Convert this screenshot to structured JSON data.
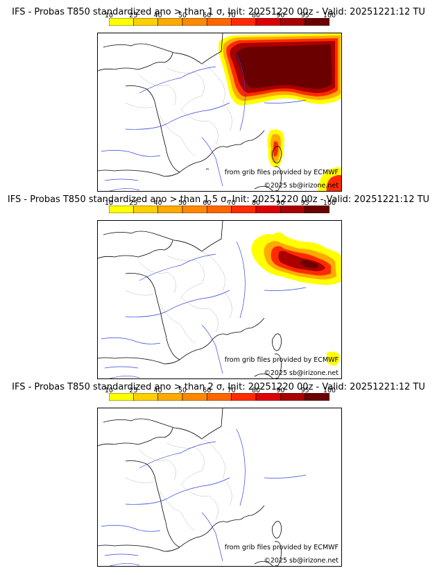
{
  "colorbar": {
    "ticks": [
      "10",
      "25",
      "40",
      "50",
      "60",
      "70",
      "80",
      "90",
      "95",
      "100"
    ],
    "colors": [
      "#ffff00",
      "#ffd000",
      "#ffaa00",
      "#ff8800",
      "#ff6600",
      "#ff2a00",
      "#dd0000",
      "#aa0000",
      "#6a0000"
    ]
  },
  "source_text": "from grib files provided by ECMWF",
  "copyright": "©2025 sb@irizone.net",
  "panels": [
    {
      "title": "IFS - Probas T850  standardized ano > than 1 σ, Init: 20251220 00z - Valid: 20251221:12 TU"
    },
    {
      "title": "IFS - Probas T850  standardized ano > than 1.5 σ, Init: 20251220 00z - Valid: 20251221:12 TU"
    },
    {
      "title": "IFS - Probas T850  standardized ano > than 2 σ, Init: 20251220 00z - Valid: 20251221:12 TU"
    }
  ]
}
